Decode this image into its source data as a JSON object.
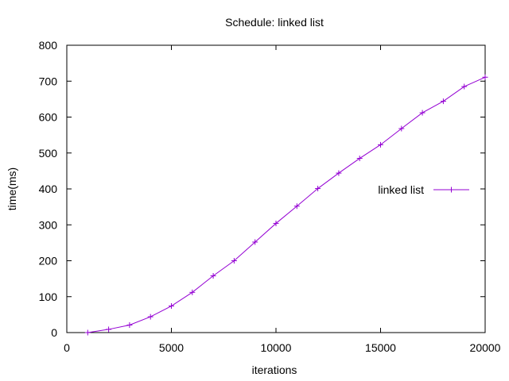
{
  "chart_data": {
    "type": "line",
    "title": "Schedule: linked list",
    "xlabel": "iterations",
    "ylabel": "time(ms)",
    "xlim": [
      0,
      20000
    ],
    "ylim": [
      0,
      800
    ],
    "xticks": [
      0,
      5000,
      10000,
      15000,
      20000
    ],
    "yticks": [
      0,
      100,
      200,
      300,
      400,
      500,
      600,
      700,
      800
    ],
    "grid": false,
    "legend_position": "right",
    "series": [
      {
        "name": "linked list",
        "color": "#9400d3",
        "marker": "plus",
        "x": [
          1000,
          2000,
          3000,
          4000,
          5000,
          6000,
          7000,
          8000,
          9000,
          10000,
          11000,
          12000,
          13000,
          14000,
          15000,
          16000,
          17000,
          18000,
          19000,
          20000
        ],
        "y": [
          0,
          9,
          21,
          44,
          74,
          112,
          158,
          200,
          252,
          304,
          352,
          401,
          444,
          485,
          523,
          568,
          612,
          644,
          685,
          711
        ]
      }
    ]
  }
}
